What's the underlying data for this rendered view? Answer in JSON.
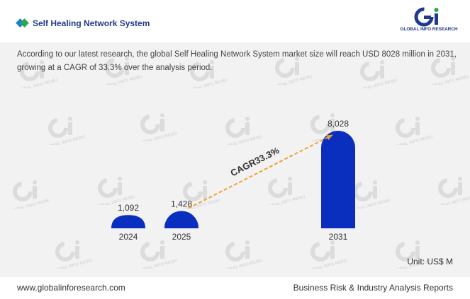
{
  "header": {
    "title": "Self Healing Network System",
    "logo_text": "GLOBAL INFO RESEARCH",
    "logo_mark": "Gi",
    "logo_colors": {
      "primary": "#1f3a8a",
      "accent": "#2aa84a"
    }
  },
  "description": "According to our latest research, the global Self Healing Network System market size will reach USD 8028 million in 2031, growing at a CAGR of 33.3% over the analysis period.",
  "unit": "Unit: US$ M",
  "footer": {
    "website": "www.globalinforesearch.com",
    "tagline": "Business Risk & Industry Analysis Reports"
  },
  "colors": {
    "bar": "#0a2fbf",
    "cagr_line": "#f0a030",
    "background": "#f2f2f2"
  },
  "chart_data": {
    "type": "bar",
    "categories": [
      "2024",
      "2025",
      "2031"
    ],
    "values": [
      1092,
      1428,
      8028
    ],
    "value_labels": [
      "1,092",
      "1,428",
      "8,028"
    ],
    "annotation": "CAGR33.3%",
    "annotation_from": "2025",
    "annotation_to": "2031"
  }
}
